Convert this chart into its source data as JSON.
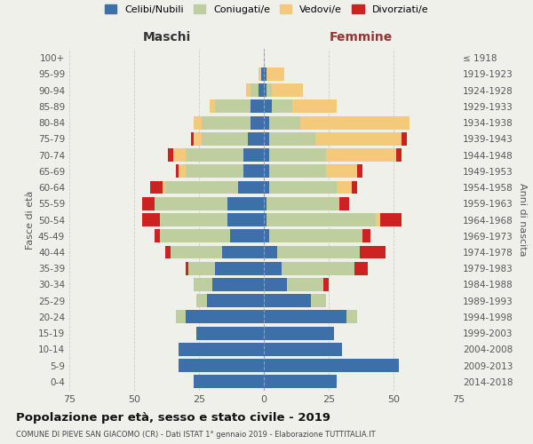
{
  "age_groups": [
    "0-4",
    "5-9",
    "10-14",
    "15-19",
    "20-24",
    "25-29",
    "30-34",
    "35-39",
    "40-44",
    "45-49",
    "50-54",
    "55-59",
    "60-64",
    "65-69",
    "70-74",
    "75-79",
    "80-84",
    "85-89",
    "90-94",
    "95-99",
    "100+"
  ],
  "birth_years": [
    "2014-2018",
    "2009-2013",
    "2004-2008",
    "1999-2003",
    "1994-1998",
    "1989-1993",
    "1984-1988",
    "1979-1983",
    "1974-1978",
    "1969-1973",
    "1964-1968",
    "1959-1963",
    "1954-1958",
    "1949-1953",
    "1944-1948",
    "1939-1943",
    "1934-1938",
    "1929-1933",
    "1924-1928",
    "1919-1923",
    "≤ 1918"
  ],
  "colors": {
    "celibe": "#3D6FA8",
    "coniugato": "#BFCE9E",
    "vedovo": "#F5C97A",
    "divorziato": "#CC2222"
  },
  "maschi": {
    "celibe": [
      27,
      33,
      33,
      26,
      30,
      22,
      20,
      19,
      16,
      13,
      14,
      14,
      10,
      8,
      8,
      6,
      5,
      5,
      2,
      1,
      0
    ],
    "coniugato": [
      0,
      0,
      0,
      0,
      4,
      4,
      7,
      10,
      20,
      27,
      26,
      28,
      28,
      22,
      22,
      18,
      19,
      14,
      3,
      0,
      0
    ],
    "vedovo": [
      0,
      0,
      0,
      0,
      0,
      0,
      0,
      0,
      0,
      0,
      0,
      0,
      1,
      3,
      5,
      3,
      3,
      2,
      2,
      1,
      0
    ],
    "divorziato": [
      0,
      0,
      0,
      0,
      0,
      0,
      0,
      1,
      2,
      2,
      7,
      5,
      5,
      1,
      2,
      1,
      0,
      0,
      0,
      0,
      0
    ]
  },
  "femmine": {
    "nubile": [
      28,
      52,
      30,
      27,
      32,
      18,
      9,
      7,
      5,
      2,
      1,
      1,
      2,
      2,
      2,
      2,
      2,
      3,
      1,
      1,
      0
    ],
    "coniugata": [
      0,
      0,
      0,
      0,
      4,
      6,
      14,
      28,
      32,
      36,
      42,
      28,
      26,
      22,
      22,
      18,
      12,
      8,
      2,
      0,
      0
    ],
    "vedova": [
      0,
      0,
      0,
      0,
      0,
      0,
      0,
      0,
      0,
      0,
      2,
      0,
      6,
      12,
      27,
      33,
      42,
      17,
      12,
      7,
      0
    ],
    "divorziata": [
      0,
      0,
      0,
      0,
      0,
      0,
      2,
      5,
      10,
      3,
      8,
      4,
      2,
      2,
      2,
      2,
      0,
      0,
      0,
      0,
      0
    ]
  },
  "xlim": 75,
  "title": "Popolazione per età, sesso e stato civile - 2019",
  "subtitle": "COMUNE DI PIEVE SAN GIACOMO (CR) - Dati ISTAT 1° gennaio 2019 - Elaborazione TUTTITALIA.IT",
  "ylabel_left": "Fasce di età",
  "ylabel_right": "Anni di nascita",
  "xlabel_left": "Maschi",
  "xlabel_right": "Femmine",
  "legend_labels": [
    "Celibi/Nubili",
    "Coniugati/e",
    "Vedovi/e",
    "Divorziati/e"
  ],
  "bg_color": "#f0f0eb"
}
